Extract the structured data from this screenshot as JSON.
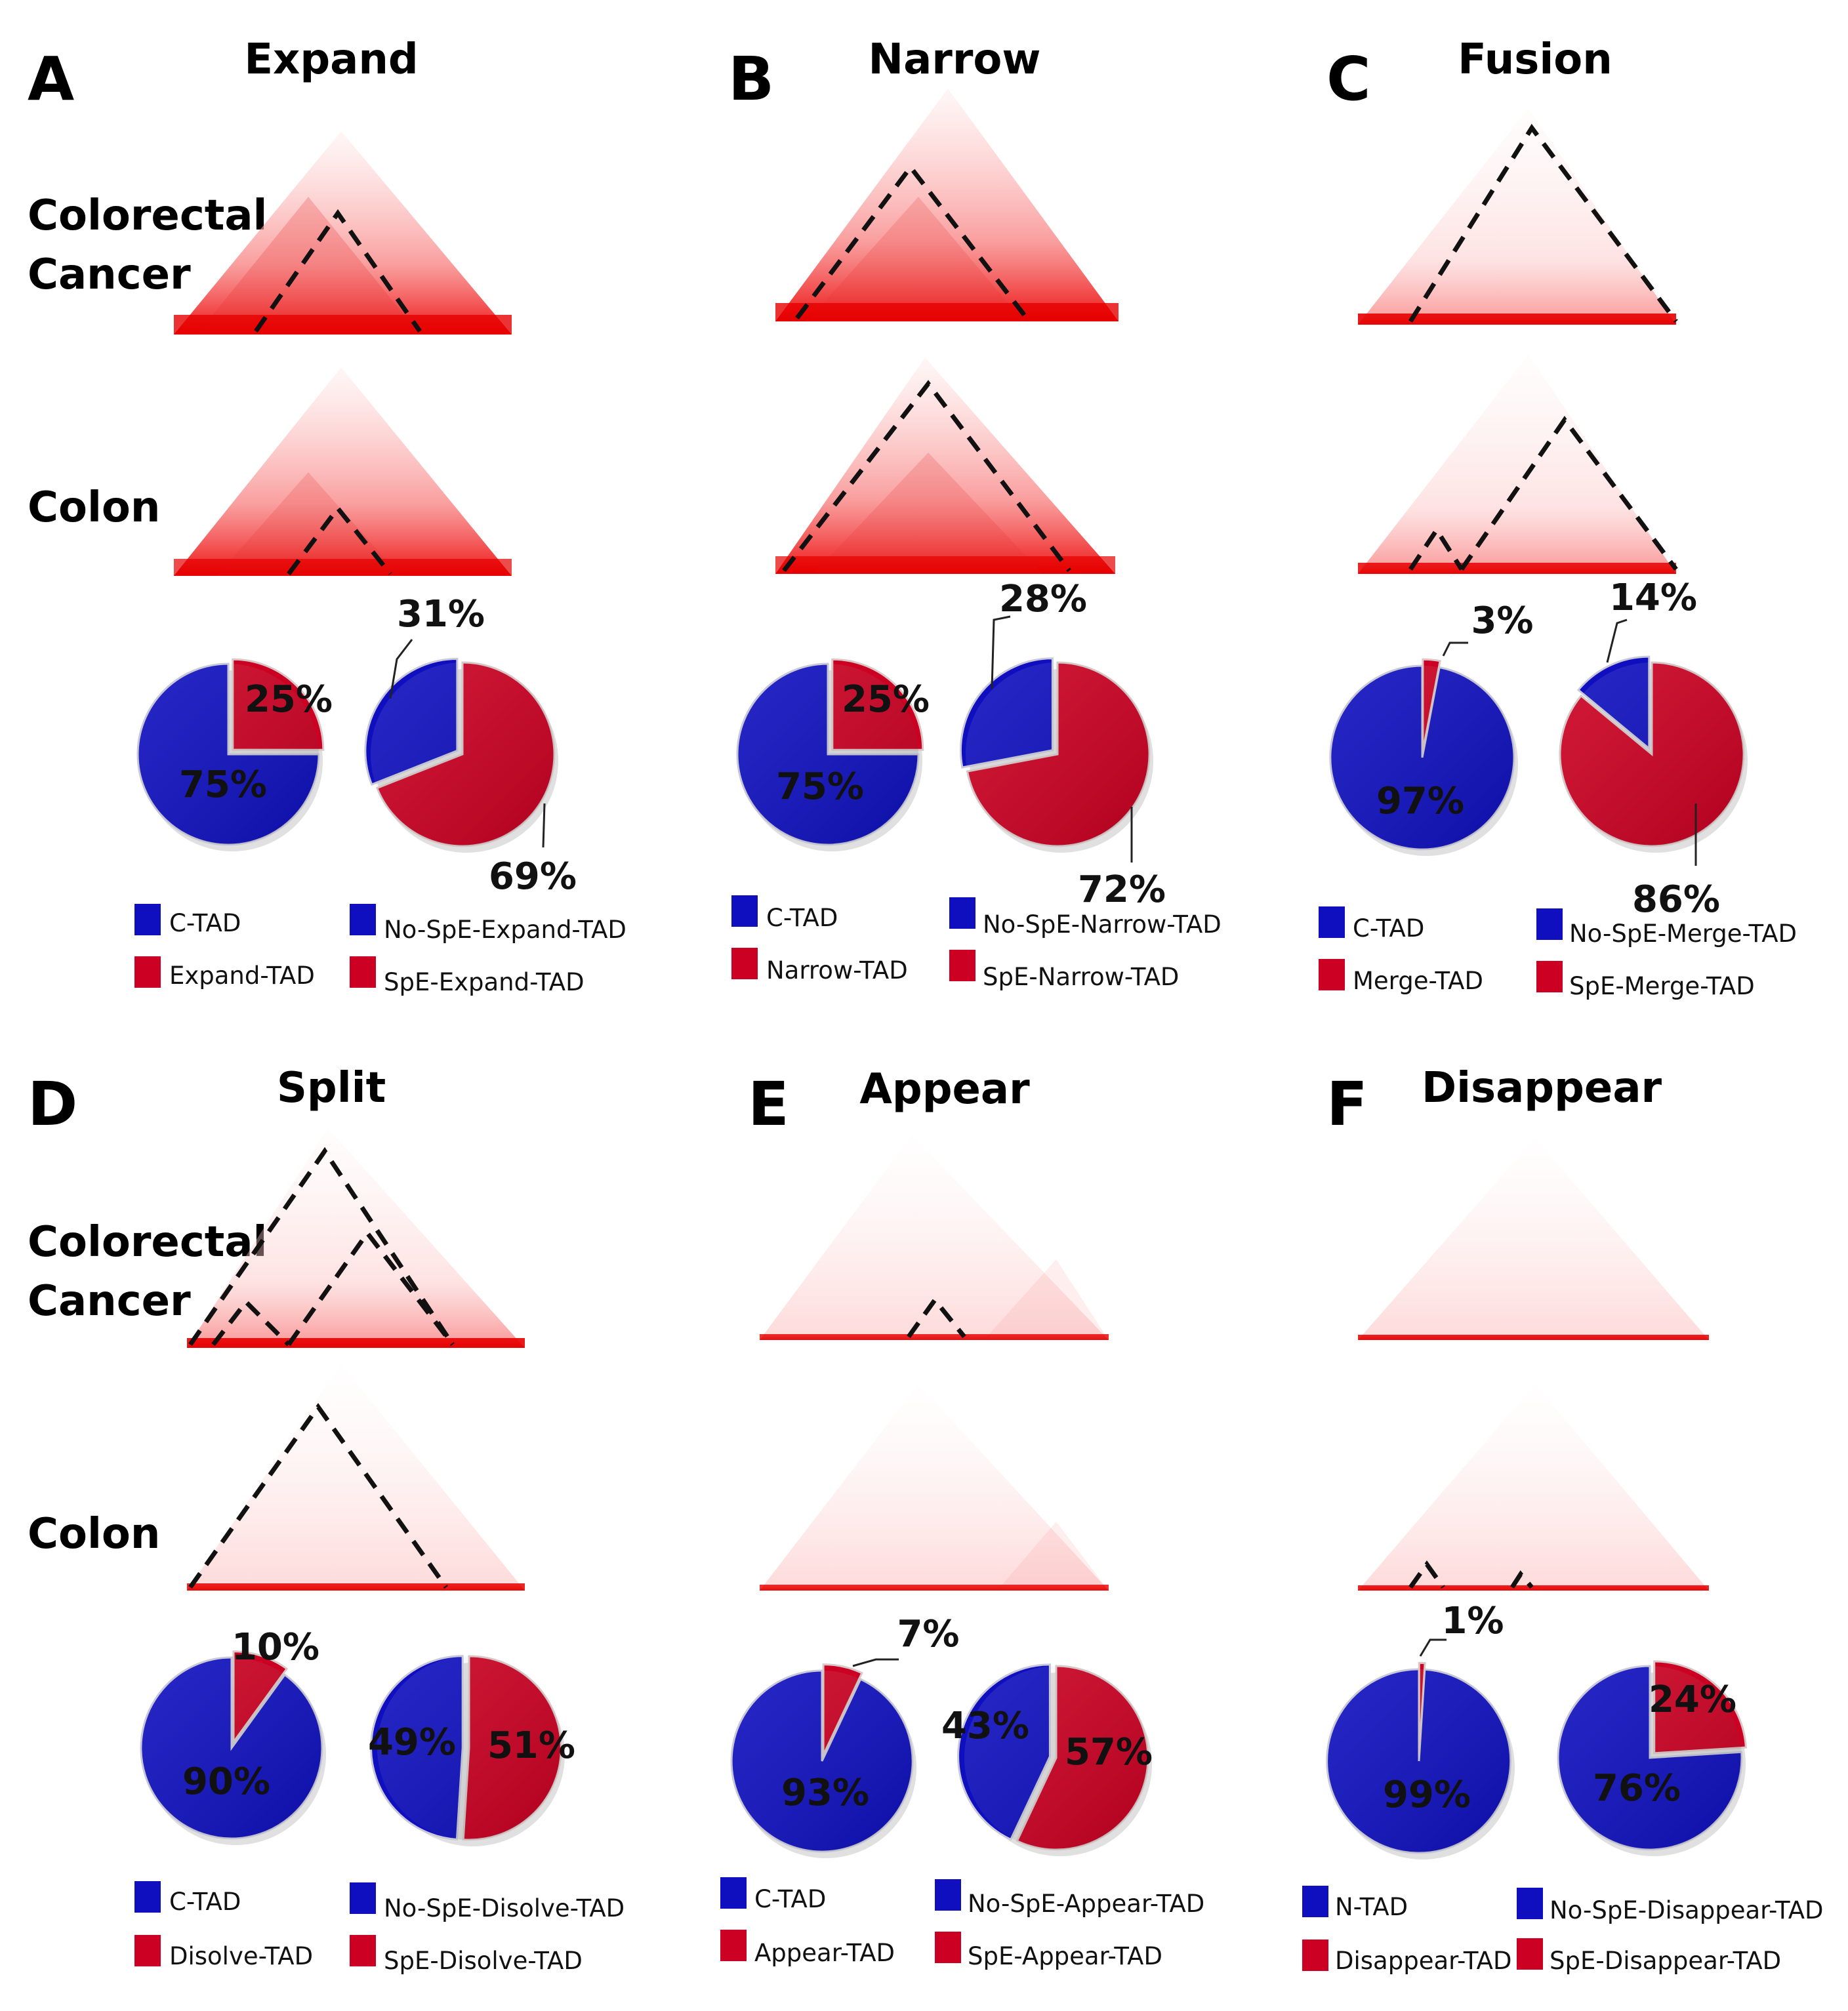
{
  "colors": {
    "blue": "#0f0fc0",
    "red": "#cc0022",
    "heat_strong": "#e60000",
    "heat_pale": "#fff0f0"
  },
  "row_labels": {
    "cancer_line1": "Colorectal",
    "cancer_line2": "Cancer",
    "colon": "Colon"
  },
  "panels": [
    {
      "letter": "A",
      "title": "Expand",
      "pie1": {
        "blue_value": 75,
        "red_value": 25,
        "blue_label": "75%",
        "red_label": "25%"
      },
      "pie2": {
        "blue_value": 31,
        "red_value": 69,
        "blue_label": "31%",
        "red_label": "69%"
      },
      "legend": [
        "C-TAD",
        "Expand-TAD",
        "No-SpE-Expand-TAD",
        "SpE-Expand-TAD"
      ]
    },
    {
      "letter": "B",
      "title": "Narrow",
      "pie1": {
        "blue_value": 75,
        "red_value": 25,
        "blue_label": "75%",
        "red_label": "25%"
      },
      "pie2": {
        "blue_value": 28,
        "red_value": 72,
        "blue_label": "28%",
        "red_label": "72%"
      },
      "legend": [
        "C-TAD",
        "Narrow-TAD",
        "No-SpE-Narrow-TAD",
        "SpE-Narrow-TAD"
      ]
    },
    {
      "letter": "C",
      "title": "Fusion",
      "pie1": {
        "blue_value": 97,
        "red_value": 3,
        "blue_label": "97%",
        "red_label": "3%"
      },
      "pie2": {
        "blue_value": 14,
        "red_value": 86,
        "blue_label": "14%",
        "red_label": "86%"
      },
      "legend": [
        "C-TAD",
        "Merge-TAD",
        "No-SpE-Merge-TAD",
        "SpE-Merge-TAD"
      ]
    },
    {
      "letter": "D",
      "title": "Split",
      "pie1": {
        "blue_value": 90,
        "red_value": 10,
        "blue_label": "90%",
        "red_label": "10%"
      },
      "pie2": {
        "blue_value": 49,
        "red_value": 51,
        "blue_label": "49%",
        "red_label": "51%"
      },
      "legend": [
        "C-TAD",
        "Disolve-TAD",
        "No-SpE-Disolve-TAD",
        "SpE-Disolve-TAD"
      ]
    },
    {
      "letter": "E",
      "title": "Appear",
      "pie1": {
        "blue_value": 93,
        "red_value": 7,
        "blue_label": "93%",
        "red_label": "7%"
      },
      "pie2": {
        "blue_value": 43,
        "red_value": 57,
        "blue_label": "43%",
        "red_label": "57%"
      },
      "legend": [
        "C-TAD",
        "Appear-TAD",
        "No-SpE-Appear-TAD",
        "SpE-Appear-TAD"
      ]
    },
    {
      "letter": "F",
      "title": "Disappear",
      "pie1": {
        "blue_value": 99,
        "red_value": 1,
        "blue_label": "99%",
        "red_label": "1%"
      },
      "pie2": {
        "blue_value": 76,
        "red_value": 24,
        "blue_label": "76%",
        "red_label": "24%"
      },
      "legend": [
        "N-TAD",
        "Disappear-TAD",
        "No-SpE-Disappear-TAD",
        "SpE-Disappear-TAD"
      ]
    }
  ]
}
